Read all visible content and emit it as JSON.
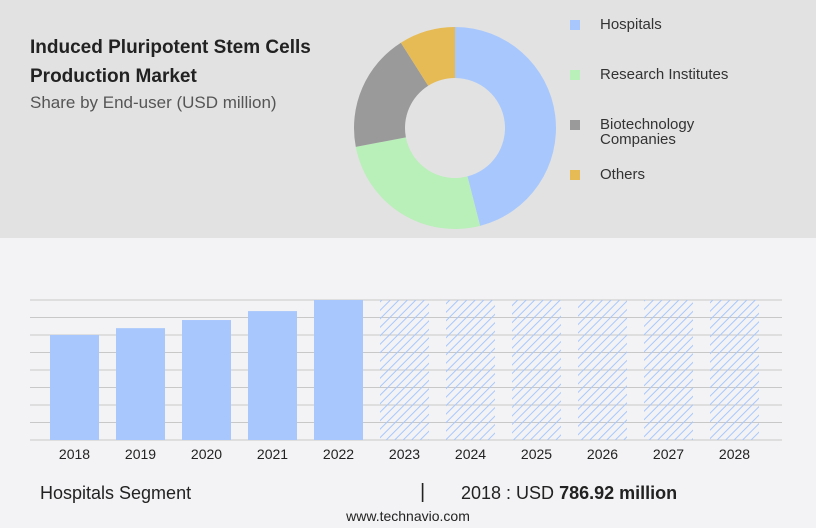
{
  "header": {
    "title": "Induced Pluripotent Stem Cells Production Market",
    "subtitle": "Share by End-user (USD million)"
  },
  "chart_data": [
    {
      "type": "pie",
      "style": "donut",
      "slices": [
        {
          "name": "Hospitals",
          "share": 46,
          "color": "#a8c8fd"
        },
        {
          "name": "Research Institutes",
          "share": 26,
          "color": "#b9efb9"
        },
        {
          "name": "Biotechnology Companies",
          "share": 19,
          "color": "#9a9a9a"
        },
        {
          "name": "Others",
          "share": 9,
          "color": "#e6bb55"
        }
      ],
      "legend": "right"
    },
    {
      "type": "bar",
      "categories": [
        "2018",
        "2019",
        "2020",
        "2021",
        "2022",
        "2023",
        "2024",
        "2025",
        "2026",
        "2027",
        "2028"
      ],
      "values": [
        786.92,
        838,
        899,
        966,
        1049,
        null,
        null,
        null,
        null,
        null,
        null
      ],
      "forecast": [
        false,
        false,
        false,
        false,
        false,
        true,
        true,
        true,
        true,
        true,
        true
      ],
      "color": "#a8c8fd",
      "grid": true
    }
  ],
  "footer": {
    "segment": "Hospitals Segment",
    "separator": "|",
    "year_label": "2018 : USD",
    "value": "786.92 million",
    "site": "www.technavio.com"
  }
}
